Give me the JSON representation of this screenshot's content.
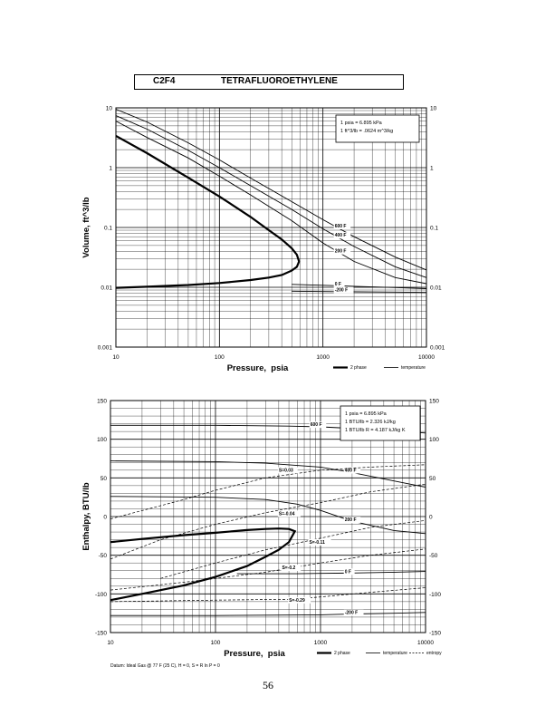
{
  "page": {
    "code": "C2F4",
    "name": "TETRAFLUOROETHYLENE",
    "page_number": "56"
  },
  "chart_data": [
    {
      "type": "line",
      "xscale": "log",
      "yscale": "log",
      "xlim": [
        10,
        10000
      ],
      "ylim": [
        0.001,
        10
      ],
      "xlabel": "Pressure,  psia",
      "ylabel": "Volume, ft^3/lb",
      "xticks": [
        "10",
        "100",
        "1000",
        "10000"
      ],
      "yticks": [
        "0.001",
        "0.01",
        "0.1",
        "1",
        "10"
      ],
      "grid": true,
      "legend": [
        {
          "label": "2 phase",
          "style": "thick"
        },
        {
          "label": "temperature",
          "style": "thin"
        }
      ],
      "notes": [
        "1 psia = 6.895 kPa",
        "1 ft^3/lb = .0624 m^3/kg"
      ],
      "series": [
        {
          "name": "2 phase",
          "style": "thick",
          "x": [
            10,
            20,
            50,
            100,
            200,
            300,
            400,
            500,
            560,
            588,
            560,
            500,
            400,
            300,
            200,
            100,
            50,
            20,
            10
          ],
          "y": [
            3.4,
            1.75,
            0.68,
            0.33,
            0.15,
            0.09,
            0.063,
            0.045,
            0.035,
            0.027,
            0.022,
            0.019,
            0.016,
            0.0145,
            0.0132,
            0.0118,
            0.0109,
            0.0102,
            0.0098
          ]
        },
        {
          "name": "600 F",
          "label_at": [
            1300,
            0.1
          ],
          "x": [
            10,
            20,
            50,
            100,
            200,
            500,
            1000,
            2000,
            5000,
            10000
          ],
          "y": [
            9.5,
            5.8,
            2.6,
            1.35,
            0.67,
            0.27,
            0.135,
            0.07,
            0.032,
            0.0195
          ]
        },
        {
          "name": "400 F",
          "label_at": [
            1300,
            0.07
          ],
          "x": [
            10,
            20,
            50,
            100,
            200,
            500,
            1000,
            2000,
            5000,
            10000
          ],
          "y": [
            7.4,
            4.4,
            1.95,
            1.0,
            0.5,
            0.2,
            0.095,
            0.048,
            0.022,
            0.0145
          ]
        },
        {
          "name": "200 F",
          "label_at": [
            1300,
            0.038
          ],
          "x": [
            10,
            20,
            50,
            100,
            200,
            500,
            1000,
            2000,
            5000,
            10000
          ],
          "y": [
            6.0,
            3.2,
            1.45,
            0.72,
            0.35,
            0.13,
            0.055,
            0.027,
            0.0145,
            0.0115
          ]
        },
        {
          "name": "0 F",
          "label_at": [
            1300,
            0.0108
          ],
          "x": [
            500,
            1000,
            2000,
            5000,
            10000
          ],
          "y": [
            0.0112,
            0.0108,
            0.0104,
            0.0099,
            0.0095
          ]
        },
        {
          "name": "-200 F",
          "label_at": [
            1300,
            0.0085
          ],
          "x": [
            500,
            1000,
            2000,
            5000,
            10000
          ],
          "y": [
            0.0086,
            0.0085,
            0.0084,
            0.0083,
            0.0082
          ]
        }
      ]
    },
    {
      "type": "line",
      "xscale": "log",
      "yscale": "linear",
      "xlim": [
        10,
        10000
      ],
      "ylim": [
        -150,
        150
      ],
      "xlabel": "Pressure,  psia",
      "ylabel": "Enthalpy, BTU/lb",
      "xticks": [
        "10",
        "100",
        "1000",
        "10000"
      ],
      "yticks": [
        "-150",
        "-100",
        "-50",
        "0",
        "50",
        "100",
        "150"
      ],
      "grid": true,
      "legend": [
        {
          "label": "2 phase",
          "style": "thick"
        },
        {
          "label": "temperature",
          "style": "thin"
        },
        {
          "label": "entropy",
          "style": "dashed"
        }
      ],
      "notes": [
        "1 psia = 6.895 kPa",
        "1 BTU/lb = 2.326 kJ/kg",
        "1 BTU/lb R = 4.187 kJ/kg K"
      ],
      "footnote": "Datum: Ideal Gas @ 77 F (25 C),  H = 0,  S = R ln P = 0",
      "series": [
        {
          "name": "2 phase",
          "style": "thick",
          "x": [
            10,
            20,
            50,
            100,
            200,
            300,
            400,
            500,
            570,
            500,
            400,
            300,
            200,
            100,
            50,
            20,
            10
          ],
          "y": [
            -33,
            -29,
            -24,
            -21,
            -17.5,
            -16,
            -15.5,
            -16,
            -19,
            -33,
            -43,
            -52,
            -64,
            -78,
            -89,
            -100,
            -108
          ]
        },
        {
          "name": "600 F",
          "style": "solid",
          "label_at": [
            800,
            117
          ],
          "x": [
            10,
            100,
            500,
            1000,
            2000,
            5000,
            10000
          ],
          "y": [
            118,
            118,
            117,
            116,
            114,
            111,
            108
          ]
        },
        {
          "name": "400 F",
          "style": "solid",
          "label_at": [
            1700,
            58
          ],
          "x": [
            10,
            100,
            300,
            1000,
            2000,
            5000,
            10000
          ],
          "y": [
            72,
            71,
            69,
            64,
            57,
            46,
            38
          ]
        },
        {
          "name": "200 F",
          "style": "solid",
          "label_at": [
            1700,
            -6
          ],
          "x": [
            10,
            100,
            300,
            600,
            1000,
            2000,
            5000,
            10000
          ],
          "y": [
            26,
            25,
            22,
            16,
            8,
            -6,
            -18,
            -22
          ]
        },
        {
          "name": "0 F",
          "style": "solid",
          "label_at": [
            1700,
            -73
          ],
          "x": [
            160,
            300,
            600,
            1000,
            2000,
            5000,
            10000
          ],
          "y": [
            -74,
            -74,
            -74,
            -73.5,
            -73,
            -72,
            -71
          ]
        },
        {
          "name": "-200 F",
          "style": "solid",
          "label_at": [
            1700,
            -126
          ],
          "x": [
            10,
            100,
            1000,
            2000,
            5000,
            10000
          ],
          "y": [
            -128,
            -128,
            -127,
            -126,
            -125,
            -124
          ]
        },
        {
          "name": "S=0.03",
          "style": "dashed",
          "label_at": [
            400,
            58
          ],
          "x": [
            10,
            50,
            100,
            300,
            1000,
            3000,
            10000
          ],
          "y": [
            -3,
            22,
            34,
            50,
            60,
            64,
            67
          ]
        },
        {
          "name": "S=-0.04",
          "style": "dashed",
          "label_at": [
            400,
            2
          ],
          "x": [
            10,
            30,
            100,
            300,
            1000,
            3000,
            10000
          ],
          "y": [
            -55,
            -30,
            -10,
            5,
            18,
            32,
            42
          ]
        },
        {
          "name": "S=-0.11",
          "style": "dashed",
          "label_at": [
            780,
            -35
          ],
          "x": [
            30,
            100,
            300,
            1000,
            3000,
            10000
          ],
          "y": [
            -80,
            -60,
            -43,
            -28,
            -14,
            -5
          ]
        },
        {
          "name": "S=-0.2",
          "style": "dashed",
          "label_at": [
            430,
            -68
          ],
          "x": [
            10,
            50,
            100,
            300,
            1000,
            3000,
            10000
          ],
          "y": [
            -95,
            -85,
            -80,
            -72,
            -60,
            -50,
            -42
          ]
        },
        {
          "name": "S=-0.29",
          "style": "dashed",
          "label_at": [
            500,
            -110
          ],
          "x": [
            10,
            100,
            500,
            1000,
            3000,
            10000
          ],
          "y": [
            -110,
            -108,
            -107,
            -104,
            -98,
            -92
          ]
        }
      ]
    }
  ]
}
